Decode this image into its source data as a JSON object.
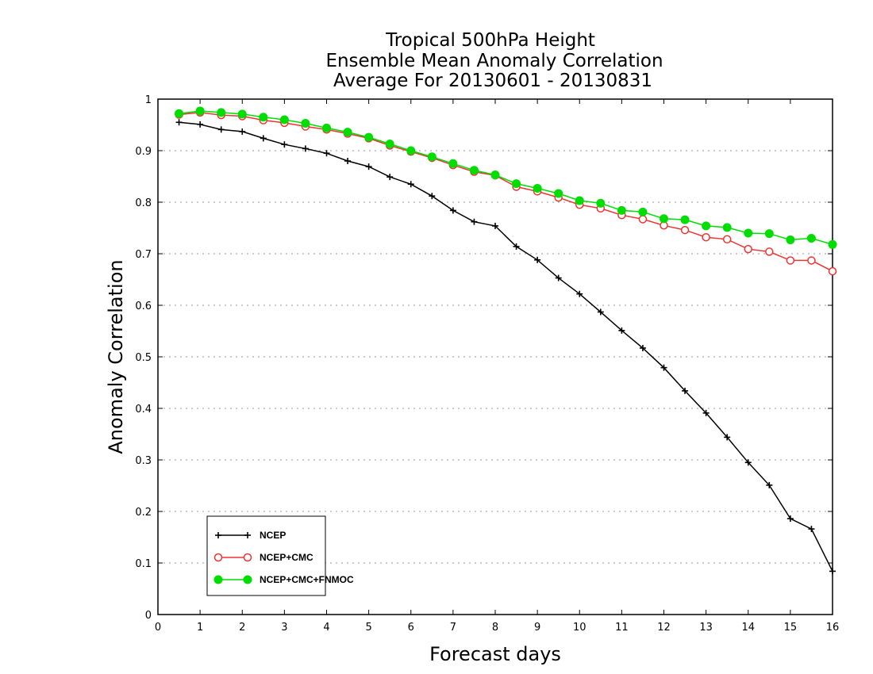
{
  "chart_data": {
    "type": "line",
    "title": [
      "Tropical 500hPa Height",
      "Ensemble Mean Anomaly Correlation",
      "Average For 20130601 - 20130831"
    ],
    "xlabel": "Forecast days",
    "ylabel": "Anomaly Correlation",
    "xlim": [
      0,
      16
    ],
    "ylim": [
      0,
      1
    ],
    "xticks": [
      "0",
      "1",
      "2",
      "3",
      "4",
      "5",
      "6",
      "7",
      "8",
      "9",
      "10",
      "11",
      "12",
      "13",
      "14",
      "15",
      "16"
    ],
    "yticks": [
      "0",
      "0.1",
      "0.2",
      "0.3",
      "0.4",
      "0.5",
      "0.6",
      "0.7",
      "0.8",
      "0.9",
      "1"
    ],
    "grid": "horizontal dotted",
    "legend_position": "bottom-left",
    "x": [
      0.5,
      1,
      1.5,
      2,
      2.5,
      3,
      3.5,
      4,
      4.5,
      5,
      5.5,
      6,
      6.5,
      7,
      7.5,
      8,
      8.5,
      9,
      9.5,
      10,
      10.5,
      11,
      11.5,
      12,
      12.5,
      13,
      13.5,
      14,
      14.5,
      15,
      15.5,
      16
    ],
    "series": [
      {
        "name": "NCEP",
        "color": "#000000",
        "marker": "plus",
        "values": [
          0.955,
          0.951,
          0.941,
          0.937,
          0.924,
          0.912,
          0.904,
          0.895,
          0.88,
          0.869,
          0.849,
          0.835,
          0.812,
          0.784,
          0.762,
          0.754,
          0.714,
          0.688,
          0.653,
          0.622,
          0.587,
          0.551,
          0.517,
          0.479,
          0.434,
          0.391,
          0.344,
          0.295,
          0.251,
          0.186,
          0.166,
          0.084
        ]
      },
      {
        "name": "NCEP+CMC",
        "color": "#ee3333",
        "marker": "open-circle",
        "values": [
          0.97,
          0.974,
          0.969,
          0.967,
          0.959,
          0.954,
          0.947,
          0.941,
          0.933,
          0.924,
          0.91,
          0.898,
          0.886,
          0.872,
          0.859,
          0.852,
          0.83,
          0.821,
          0.809,
          0.795,
          0.788,
          0.775,
          0.767,
          0.755,
          0.746,
          0.732,
          0.728,
          0.709,
          0.704,
          0.687,
          0.687,
          0.666
        ]
      },
      {
        "name": "NCEP+CMC+FNMOC",
        "color": "#00dd00",
        "marker": "filled-circle",
        "values": [
          0.972,
          0.977,
          0.974,
          0.971,
          0.965,
          0.96,
          0.953,
          0.944,
          0.936,
          0.926,
          0.913,
          0.9,
          0.888,
          0.875,
          0.862,
          0.853,
          0.836,
          0.827,
          0.817,
          0.803,
          0.798,
          0.784,
          0.781,
          0.768,
          0.766,
          0.754,
          0.751,
          0.74,
          0.739,
          0.727,
          0.73,
          0.718
        ]
      }
    ]
  }
}
